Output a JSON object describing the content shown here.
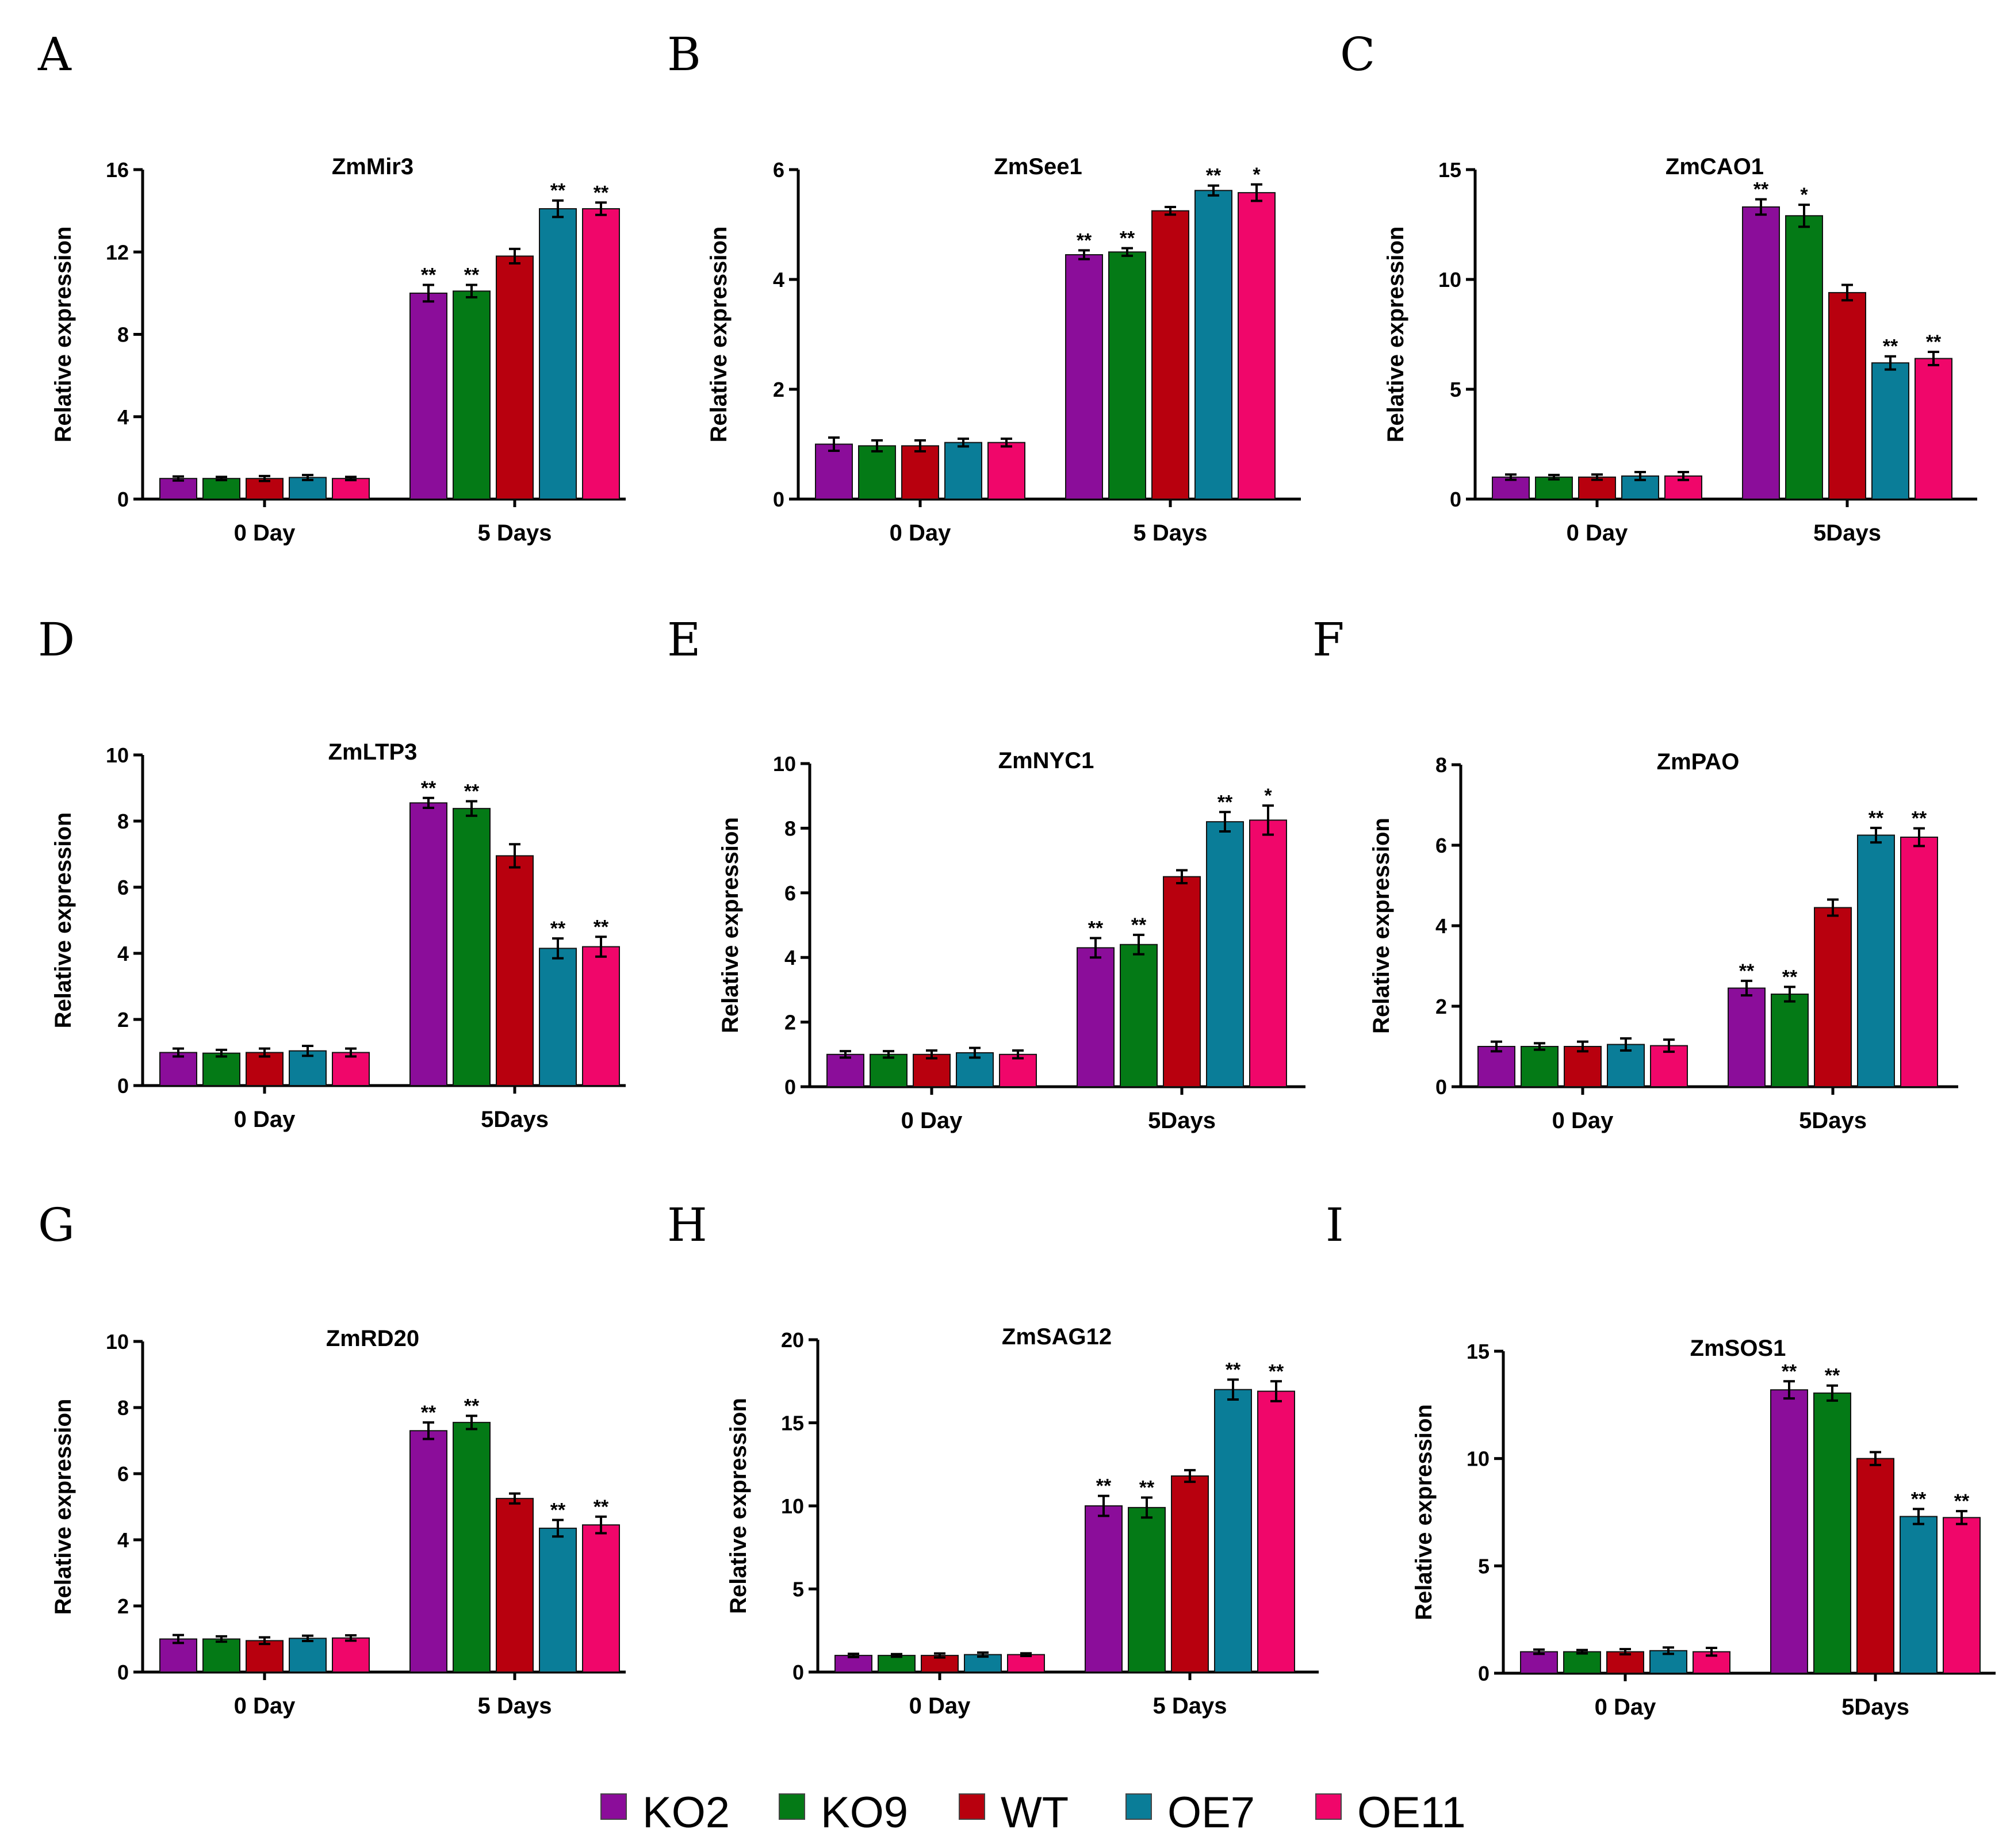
{
  "legend": [
    {
      "name": "KO2",
      "color": "#8b0d9a"
    },
    {
      "name": "KO9",
      "color": "#047a16"
    },
    {
      "name": "WT",
      "color": "#b8000e"
    },
    {
      "name": "OE7",
      "color": "#0a7d98"
    },
    {
      "name": "OE11",
      "color": "#f0066a"
    }
  ],
  "chart_data": [
    {
      "panel": "A",
      "type": "bar",
      "title": "ZmMir3",
      "ylabel": "Relative expression",
      "categories": [
        "0 Day",
        "5 Days"
      ],
      "ylim": [
        0,
        16
      ],
      "yticks": [
        0,
        4,
        8,
        12,
        16
      ],
      "ytick_labels": [
        "0",
        "4",
        "8",
        "12",
        "16"
      ],
      "series": [
        {
          "name": "KO2",
          "values": [
            1.0,
            10.0
          ],
          "errors": [
            0.1,
            0.4
          ],
          "sig": [
            "",
            "**"
          ]
        },
        {
          "name": "KO9",
          "values": [
            1.0,
            10.1
          ],
          "errors": [
            0.08,
            0.3
          ],
          "sig": [
            "",
            "**"
          ]
        },
        {
          "name": "WT",
          "values": [
            1.0,
            11.8
          ],
          "errors": [
            0.12,
            0.35
          ],
          "sig": [
            "",
            ""
          ]
        },
        {
          "name": "OE7",
          "values": [
            1.05,
            14.1
          ],
          "errors": [
            0.12,
            0.4
          ],
          "sig": [
            "",
            "**"
          ]
        },
        {
          "name": "OE11",
          "values": [
            1.0,
            14.1
          ],
          "errors": [
            0.08,
            0.3
          ],
          "sig": [
            "",
            "**"
          ]
        }
      ]
    },
    {
      "panel": "B",
      "type": "bar",
      "title": "ZmSee1",
      "ylabel": "Relative expression",
      "categories": [
        "0 Day",
        "5 Days"
      ],
      "ylim": [
        0,
        6
      ],
      "yticks": [
        0,
        2,
        4,
        6
      ],
      "ytick_labels": [
        "0",
        "2",
        "4",
        "6"
      ],
      "series": [
        {
          "name": "KO2",
          "values": [
            1.0,
            4.45
          ],
          "errors": [
            0.12,
            0.08
          ],
          "sig": [
            "",
            "**"
          ]
        },
        {
          "name": "KO9",
          "values": [
            0.97,
            4.5
          ],
          "errors": [
            0.1,
            0.07
          ],
          "sig": [
            "",
            "**"
          ]
        },
        {
          "name": "WT",
          "values": [
            0.97,
            5.25
          ],
          "errors": [
            0.1,
            0.07
          ],
          "sig": [
            "",
            ""
          ]
        },
        {
          "name": "OE7",
          "values": [
            1.03,
            5.62
          ],
          "errors": [
            0.07,
            0.09
          ],
          "sig": [
            "",
            "**"
          ]
        },
        {
          "name": "OE11",
          "values": [
            1.03,
            5.58
          ],
          "errors": [
            0.07,
            0.15
          ],
          "sig": [
            "",
            "*"
          ]
        }
      ]
    },
    {
      "panel": "C",
      "type": "bar",
      "title": "ZmCAO1",
      "ylabel": "Relative expression",
      "categories": [
        "0 Day",
        "5Days"
      ],
      "ylim": [
        0,
        15
      ],
      "yticks": [
        0,
        5,
        10,
        15
      ],
      "ytick_labels": [
        "0",
        "5",
        "10",
        "15"
      ],
      "series": [
        {
          "name": "KO2",
          "values": [
            1.0,
            13.3
          ],
          "errors": [
            0.12,
            0.35
          ],
          "sig": [
            "",
            "**"
          ]
        },
        {
          "name": "KO9",
          "values": [
            1.0,
            12.9
          ],
          "errors": [
            0.1,
            0.5
          ],
          "sig": [
            "",
            "*"
          ]
        },
        {
          "name": "WT",
          "values": [
            1.0,
            9.4
          ],
          "errors": [
            0.12,
            0.35
          ],
          "sig": [
            "",
            ""
          ]
        },
        {
          "name": "OE7",
          "values": [
            1.05,
            6.2
          ],
          "errors": [
            0.18,
            0.3
          ],
          "sig": [
            "",
            "**"
          ]
        },
        {
          "name": "OE11",
          "values": [
            1.05,
            6.4
          ],
          "errors": [
            0.18,
            0.3
          ],
          "sig": [
            "",
            "**"
          ]
        }
      ]
    },
    {
      "panel": "D",
      "type": "bar",
      "title": "ZmLTP3",
      "ylabel": "Relative expression",
      "categories": [
        "0 Day",
        "5Days"
      ],
      "ylim": [
        0,
        10
      ],
      "yticks": [
        0,
        2,
        4,
        6,
        8,
        10
      ],
      "ytick_labels": [
        "0",
        "2",
        "4",
        "6",
        "8",
        "10"
      ],
      "series": [
        {
          "name": "KO2",
          "values": [
            1.0,
            8.55
          ],
          "errors": [
            0.12,
            0.15
          ],
          "sig": [
            "",
            "**"
          ]
        },
        {
          "name": "KO9",
          "values": [
            0.98,
            8.38
          ],
          "errors": [
            0.1,
            0.22
          ],
          "sig": [
            "",
            "**"
          ]
        },
        {
          "name": "WT",
          "values": [
            1.0,
            6.95
          ],
          "errors": [
            0.12,
            0.35
          ],
          "sig": [
            "",
            ""
          ]
        },
        {
          "name": "OE7",
          "values": [
            1.05,
            4.15
          ],
          "errors": [
            0.15,
            0.3
          ],
          "sig": [
            "",
            "**"
          ]
        },
        {
          "name": "OE11",
          "values": [
            1.0,
            4.2
          ],
          "errors": [
            0.12,
            0.3
          ],
          "sig": [
            "",
            "**"
          ]
        }
      ]
    },
    {
      "panel": "E",
      "type": "bar",
      "title": "ZmNYC1",
      "ylabel": "Relative expression",
      "categories": [
        "0 Day",
        "5Days"
      ],
      "ylim": [
        0,
        10
      ],
      "yticks": [
        0,
        2,
        4,
        6,
        8,
        10
      ],
      "ytick_labels": [
        "0",
        "2",
        "4",
        "6",
        "8",
        "10"
      ],
      "series": [
        {
          "name": "KO2",
          "values": [
            1.0,
            4.3
          ],
          "errors": [
            0.1,
            0.3
          ],
          "sig": [
            "",
            "**"
          ]
        },
        {
          "name": "KO9",
          "values": [
            1.0,
            4.4
          ],
          "errors": [
            0.1,
            0.3
          ],
          "sig": [
            "",
            "**"
          ]
        },
        {
          "name": "WT",
          "values": [
            1.0,
            6.5
          ],
          "errors": [
            0.12,
            0.2
          ],
          "sig": [
            "",
            ""
          ]
        },
        {
          "name": "OE7",
          "values": [
            1.05,
            8.2
          ],
          "errors": [
            0.15,
            0.3
          ],
          "sig": [
            "",
            "**"
          ]
        },
        {
          "name": "OE11",
          "values": [
            1.0,
            8.25
          ],
          "errors": [
            0.12,
            0.45
          ],
          "sig": [
            "",
            "*"
          ]
        }
      ]
    },
    {
      "panel": "F",
      "type": "bar",
      "title": "ZmPAO",
      "ylabel": "Relative expression",
      "categories": [
        "0 Day",
        "5Days"
      ],
      "ylim": [
        0,
        8
      ],
      "yticks": [
        0,
        2,
        4,
        6,
        8
      ],
      "ytick_labels": [
        "0",
        "2",
        "4",
        "6",
        "8"
      ],
      "series": [
        {
          "name": "KO2",
          "values": [
            1.0,
            2.45
          ],
          "errors": [
            0.12,
            0.18
          ],
          "sig": [
            "",
            "**"
          ]
        },
        {
          "name": "KO9",
          "values": [
            1.0,
            2.3
          ],
          "errors": [
            0.08,
            0.18
          ],
          "sig": [
            "",
            "**"
          ]
        },
        {
          "name": "WT",
          "values": [
            1.0,
            4.45
          ],
          "errors": [
            0.12,
            0.2
          ],
          "sig": [
            "",
            ""
          ]
        },
        {
          "name": "OE7",
          "values": [
            1.05,
            6.25
          ],
          "errors": [
            0.15,
            0.18
          ],
          "sig": [
            "",
            "**"
          ]
        },
        {
          "name": "OE11",
          "values": [
            1.02,
            6.2
          ],
          "errors": [
            0.15,
            0.22
          ],
          "sig": [
            "",
            "**"
          ]
        }
      ]
    },
    {
      "panel": "G",
      "type": "bar",
      "title": "ZmRD20",
      "ylabel": "Relative expression",
      "categories": [
        "0 Day",
        "5 Days"
      ],
      "ylim": [
        0,
        10
      ],
      "yticks": [
        0,
        2,
        4,
        6,
        8,
        10
      ],
      "ytick_labels": [
        "0",
        "2",
        "4",
        "6",
        "8",
        "10"
      ],
      "series": [
        {
          "name": "KO2",
          "values": [
            1.0,
            7.3
          ],
          "errors": [
            0.12,
            0.25
          ],
          "sig": [
            "",
            "**"
          ]
        },
        {
          "name": "KO9",
          "values": [
            1.0,
            7.55
          ],
          "errors": [
            0.08,
            0.2
          ],
          "sig": [
            "",
            "**"
          ]
        },
        {
          "name": "WT",
          "values": [
            0.95,
            5.25
          ],
          "errors": [
            0.1,
            0.15
          ],
          "sig": [
            "",
            ""
          ]
        },
        {
          "name": "OE7",
          "values": [
            1.02,
            4.35
          ],
          "errors": [
            0.08,
            0.25
          ],
          "sig": [
            "",
            "**"
          ]
        },
        {
          "name": "OE11",
          "values": [
            1.03,
            4.45
          ],
          "errors": [
            0.08,
            0.25
          ],
          "sig": [
            "",
            "**"
          ]
        }
      ]
    },
    {
      "panel": "H",
      "type": "bar",
      "title": "ZmSAG12",
      "ylabel": "Relative expression",
      "categories": [
        "0 Day",
        "5 Days"
      ],
      "ylim": [
        0,
        20
      ],
      "yticks": [
        0,
        5,
        10,
        15,
        20
      ],
      "ytick_labels": [
        "0",
        "5",
        "10",
        "15",
        "20"
      ],
      "series": [
        {
          "name": "KO2",
          "values": [
            1.0,
            10.0
          ],
          "errors": [
            0.1,
            0.6
          ],
          "sig": [
            "",
            "**"
          ]
        },
        {
          "name": "KO9",
          "values": [
            1.0,
            9.9
          ],
          "errors": [
            0.08,
            0.6
          ],
          "sig": [
            "",
            "**"
          ]
        },
        {
          "name": "WT",
          "values": [
            1.0,
            11.8
          ],
          "errors": [
            0.12,
            0.35
          ],
          "sig": [
            "",
            ""
          ]
        },
        {
          "name": "OE7",
          "values": [
            1.05,
            17.0
          ],
          "errors": [
            0.12,
            0.6
          ],
          "sig": [
            "",
            "**"
          ]
        },
        {
          "name": "OE11",
          "values": [
            1.05,
            16.9
          ],
          "errors": [
            0.08,
            0.6
          ],
          "sig": [
            "",
            "**"
          ]
        }
      ]
    },
    {
      "panel": "I",
      "type": "bar",
      "title": "ZmSOS1",
      "ylabel": "Relative expression",
      "categories": [
        "0 Day",
        "5Days"
      ],
      "ylim": [
        0,
        15
      ],
      "yticks": [
        0,
        5,
        10,
        15
      ],
      "ytick_labels": [
        "0",
        "5",
        "10",
        "15"
      ],
      "series": [
        {
          "name": "KO2",
          "values": [
            1.0,
            13.2
          ],
          "errors": [
            0.1,
            0.4
          ],
          "sig": [
            "",
            "**"
          ]
        },
        {
          "name": "KO9",
          "values": [
            1.0,
            13.05
          ],
          "errors": [
            0.08,
            0.35
          ],
          "sig": [
            "",
            "**"
          ]
        },
        {
          "name": "WT",
          "values": [
            1.0,
            10.0
          ],
          "errors": [
            0.12,
            0.3
          ],
          "sig": [
            "",
            ""
          ]
        },
        {
          "name": "OE7",
          "values": [
            1.05,
            7.3
          ],
          "errors": [
            0.15,
            0.35
          ],
          "sig": [
            "",
            "**"
          ]
        },
        {
          "name": "OE11",
          "values": [
            1.0,
            7.25
          ],
          "errors": [
            0.18,
            0.3
          ],
          "sig": [
            "",
            "**"
          ]
        }
      ]
    }
  ]
}
